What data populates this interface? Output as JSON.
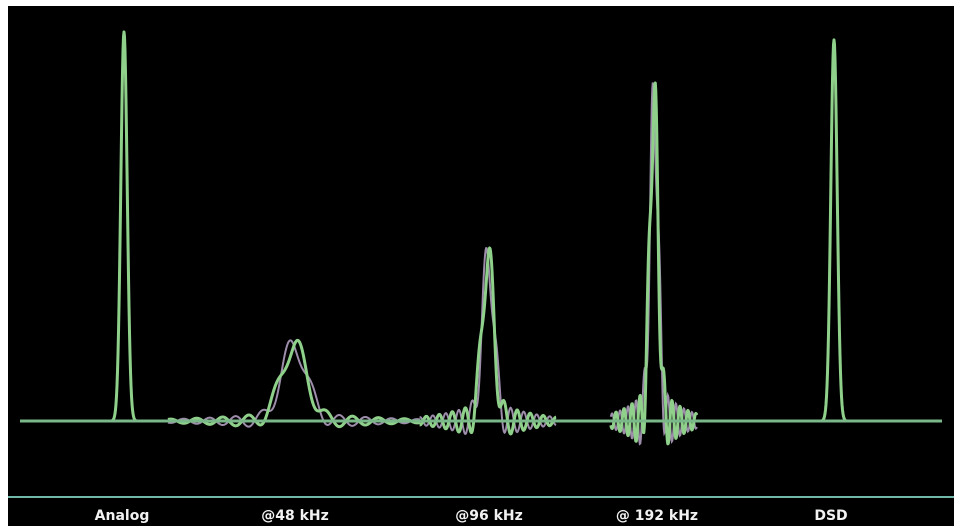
{
  "chart_data": {
    "type": "line",
    "title": "",
    "xlabel": "",
    "ylabel": "",
    "colors": {
      "background": "#000000",
      "trace": "#8fd18a",
      "trace_alt": "#b9a6c9",
      "baseline": "#7ab88a",
      "separator": "#6fb7a8",
      "label": "#f2f2f2"
    },
    "categories": [
      "Analog",
      "@48 kHz",
      "@96 kHz",
      "@ 192 kHz",
      "DSD"
    ],
    "series": [
      {
        "peak": 0.98,
        "ringing": "none"
      },
      {
        "peak": 0.19,
        "ringing": "wide"
      },
      {
        "peak": 0.41,
        "ringing": "medium"
      },
      {
        "peak": 0.8,
        "ringing": "narrow"
      },
      {
        "peak": 0.96,
        "ringing": "none"
      }
    ]
  }
}
